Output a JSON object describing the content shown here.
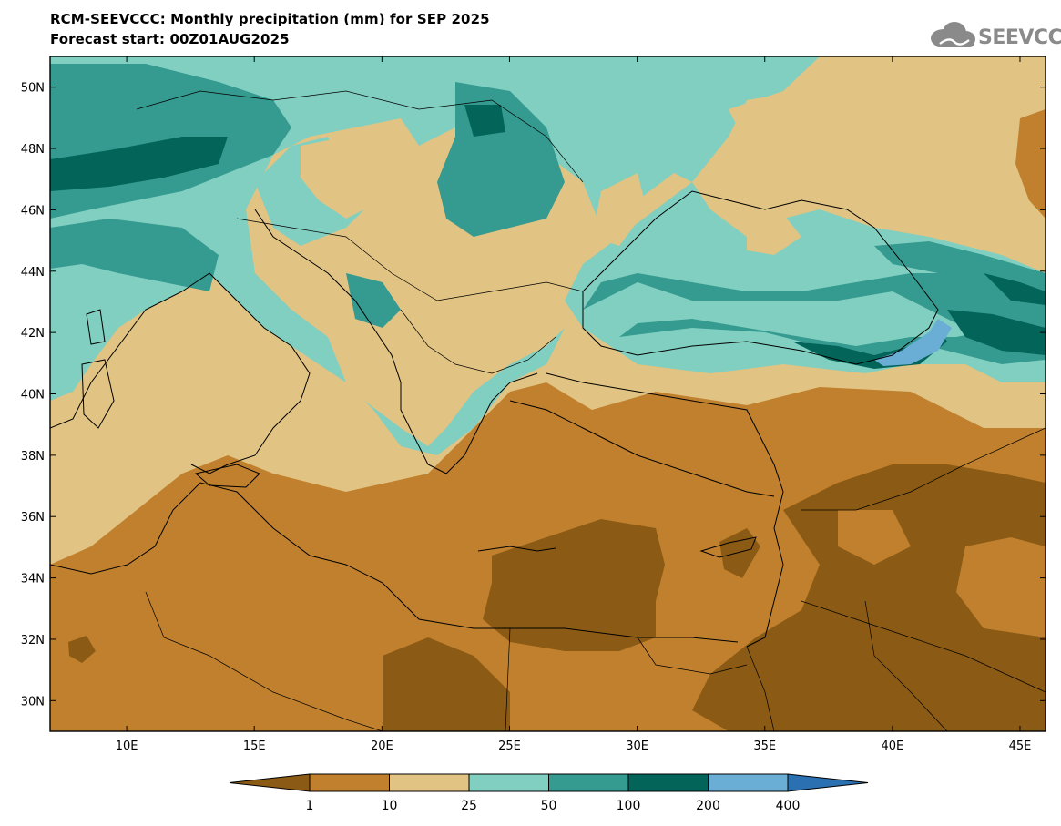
{
  "header": {
    "title_line1": "RCM-SEEVCCC: Monthly precipitation (mm) for SEP 2025",
    "title_line2": "Forecast start: 00Z01AUG2025",
    "logo_text": "SEEVCCC"
  },
  "map": {
    "lon_range": [
      7,
      46
    ],
    "lat_range": [
      29,
      51
    ],
    "lat_ticks": [
      "50N",
      "48N",
      "46N",
      "44N",
      "42N",
      "40N",
      "38N",
      "36N",
      "34N",
      "32N",
      "30N"
    ],
    "lon_ticks": [
      "10E",
      "15E",
      "20E",
      "25E",
      "30E",
      "35E",
      "40E",
      "45E"
    ]
  },
  "colorbar": {
    "labels": [
      "1",
      "10",
      "25",
      "50",
      "100",
      "200",
      "400"
    ],
    "colors": [
      "#8b5a14",
      "#c0802e",
      "#e1c383",
      "#80cfc1",
      "#359a8f",
      "#03645a",
      "#6aaed6",
      "#2b70b0"
    ]
  }
}
